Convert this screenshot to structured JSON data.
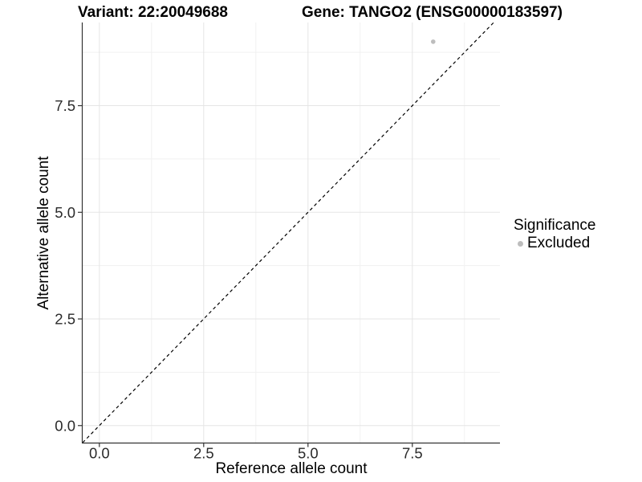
{
  "chart_data": {
    "type": "scatter",
    "title_left": "Variant: 22:20049688",
    "title_right": "Gene: TANGO2 (ENSG00000183597)",
    "xlabel": "Reference allele count",
    "ylabel": "Alternative allele count",
    "xlim": [
      -0.4,
      9.6
    ],
    "ylim": [
      -0.4,
      9.45
    ],
    "xticks": {
      "values": [
        0,
        2.5,
        5,
        7.5
      ],
      "labels": [
        "0.0",
        "2.5",
        "5.0",
        "7.5"
      ]
    },
    "yticks": {
      "values": [
        0,
        2.5,
        5,
        7.5
      ],
      "labels": [
        "0.0",
        "2.5",
        "5.0",
        "7.5"
      ]
    },
    "minor_xticks": [
      1.25,
      3.75,
      6.25,
      8.75
    ],
    "minor_yticks": [
      1.25,
      3.75,
      6.25,
      8.75
    ],
    "grid": "major+minor",
    "points": [
      {
        "x": 8,
        "y": 9,
        "series": "Excluded"
      }
    ],
    "identity_line": {
      "style": "dashed",
      "equation": "y = x"
    },
    "legend": {
      "title": "Significance",
      "position": "right",
      "items": [
        {
          "label": "Excluded",
          "color": "#bdbdbd"
        }
      ]
    },
    "colors": {
      "point": "#bdbdbd",
      "grid_major": "#e5e5e5",
      "grid_minor": "#f1f1f1",
      "axis_line": "#333333",
      "tick_mark": "#333333",
      "tick_label": "#2b2b2b",
      "identity_line": "#000000",
      "background": "#ffffff"
    }
  }
}
